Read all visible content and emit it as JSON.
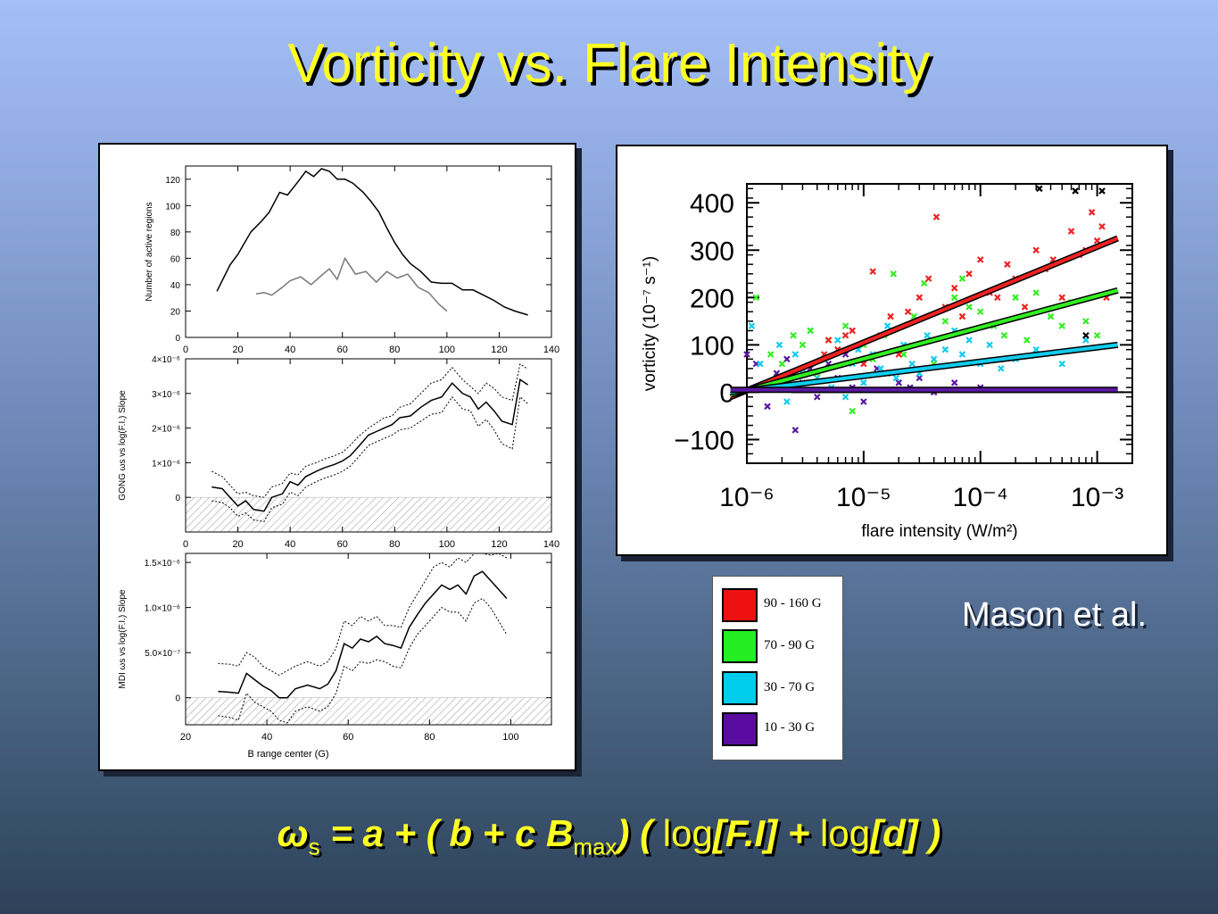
{
  "title": "Vorticity vs. Flare Intensity",
  "credit": "Mason et al.",
  "formula": {
    "omega": "ω",
    "omega_sub": "s",
    "part1": "= a + ( b + c B",
    "b_sub": "max",
    "part2": ") (",
    "log1": "log",
    "arg1": "[F.I]",
    "plus": "+",
    "log2": "log",
    "arg2": "[d]",
    "close": ")"
  },
  "colors": {
    "red": "#ee2222",
    "green": "#22ee22",
    "cyan": "#11ccee",
    "purple": "#5522aa",
    "yellow": "#ffff22"
  },
  "legend": [
    {
      "label": "90 - 160 G",
      "color": "#ee1111"
    },
    {
      "label": "70 - 90 G",
      "color": "#22ee22"
    },
    {
      "label": "30 - 70 G",
      "color": "#00ccee"
    },
    {
      "label": "10 - 30 G",
      "color": "#5a0ca0"
    }
  ],
  "chart_data": [
    {
      "type": "line",
      "ylabel": "Number of active regions",
      "xlim": [
        0,
        140
      ],
      "ylim": [
        0,
        130
      ],
      "xticks": [
        "0",
        "20",
        "40",
        "60",
        "80",
        "100",
        "120",
        "140"
      ],
      "yticks": [
        "0",
        "20",
        "40",
        "60",
        "80",
        "100",
        "120"
      ],
      "series": [
        {
          "x": [
            12,
            17,
            20,
            25,
            29,
            32,
            36,
            39,
            43,
            46,
            49,
            52,
            55,
            58,
            61,
            64,
            68,
            71,
            74,
            77,
            80,
            83,
            86,
            90,
            94,
            98,
            102,
            106,
            110,
            114,
            118,
            122,
            126,
            131
          ],
          "y": [
            35,
            55,
            63,
            80,
            88,
            95,
            110,
            108,
            118,
            126,
            122,
            128,
            126,
            120,
            120,
            117,
            110,
            103,
            95,
            83,
            72,
            63,
            56,
            50,
            42,
            41,
            41,
            36,
            36,
            32,
            28,
            23,
            20,
            17
          ]
        },
        {
          "x": [
            27,
            30,
            33,
            37,
            40,
            44,
            48,
            52,
            55,
            58,
            61,
            65,
            69,
            73,
            77,
            81,
            85,
            89,
            93,
            97,
            100
          ],
          "y": [
            33,
            34,
            32,
            38,
            43,
            46,
            40,
            47,
            52,
            44,
            60,
            48,
            50,
            42,
            50,
            45,
            48,
            38,
            34,
            25,
            20
          ]
        }
      ]
    },
    {
      "type": "line",
      "ylabel": "GONG ωs vs log(F.I.) Slope",
      "xlim": [
        0,
        140
      ],
      "ylim": [
        -1e-06,
        4e-06
      ],
      "xticks": [
        "0",
        "20",
        "40",
        "60",
        "80",
        "100",
        "120",
        "140"
      ],
      "yticks": [
        "0",
        "1×10⁻⁶",
        "2×10⁻⁶",
        "3×10⁻⁶",
        "4×10⁻⁶"
      ],
      "series": [
        {
          "x": [
            10,
            14,
            17,
            20,
            23,
            26,
            30,
            33,
            37,
            40,
            43,
            46,
            50,
            53,
            57,
            60,
            63,
            66,
            70,
            73,
            76,
            79,
            82,
            86,
            90,
            94,
            98,
            102,
            106,
            109,
            112,
            115,
            118,
            121,
            125,
            128,
            131
          ],
          "y": [
            3e-07,
            2.5e-07,
            0.0,
            -2.5e-07,
            -1e-07,
            -3.5e-07,
            -4e-07,
            0.0,
            1e-07,
            4.5e-07,
            3.5e-07,
            6e-07,
            7.5e-07,
            8.5e-07,
            9.5e-07,
            1.05e-06,
            1.2e-06,
            1.45e-06,
            1.8e-06,
            1.9e-06,
            2e-06,
            2.1e-06,
            2.3e-06,
            2.35e-06,
            2.6e-06,
            2.8e-06,
            2.9e-06,
            3.3e-06,
            3e-06,
            2.9e-06,
            2.55e-06,
            2.75e-06,
            2.5e-06,
            2.2e-06,
            2.1e-06,
            3.4e-06,
            3.25e-06
          ]
        },
        {
          "x": [
            10,
            14,
            17,
            20,
            23,
            26,
            30,
            33,
            37,
            40,
            43,
            46,
            50,
            53,
            57,
            60,
            63,
            66,
            70,
            73,
            76,
            79,
            82,
            86,
            90,
            94,
            98,
            102,
            106,
            109,
            112,
            115,
            118,
            121,
            125,
            128,
            131
          ],
          "y": [
            7.5e-07,
            6e-07,
            3.5e-07,
            1e-07,
            1.5e-07,
            5e-08,
            0.0,
            3e-07,
            4e-07,
            7e-07,
            6.5e-07,
            9e-07,
            1e-06,
            1.1e-06,
            1.2e-06,
            1.3e-06,
            1.5e-06,
            1.75e-06,
            2e-06,
            2.15e-06,
            2.3e-06,
            2.35e-06,
            2.6e-06,
            2.7e-06,
            3e-06,
            3.3e-06,
            3.4e-06,
            3.75e-06,
            3.4e-06,
            3.2e-06,
            3e-06,
            3.3e-06,
            3.15e-06,
            2.9e-06,
            2.8e-06,
            3.85e-06,
            3.7e-06
          ]
        },
        {
          "x": [
            10,
            14,
            17,
            20,
            23,
            26,
            30,
            33,
            37,
            40,
            43,
            46,
            50,
            53,
            57,
            60,
            63,
            66,
            70,
            73,
            76,
            79,
            82,
            86,
            90,
            94,
            98,
            102,
            106,
            109,
            112,
            115,
            118,
            121,
            125,
            128,
            131
          ],
          "y": [
            -1e-07,
            -1.5e-07,
            -3e-07,
            -5.5e-07,
            -4.5e-07,
            -6.5e-07,
            -7e-07,
            -3e-07,
            -2e-07,
            1.5e-07,
            5e-08,
            3e-07,
            4.5e-07,
            5.5e-07,
            6.5e-07,
            7.5e-07,
            9e-07,
            1.15e-06,
            1.5e-06,
            1.6e-06,
            1.7e-06,
            1.8e-06,
            1.95e-06,
            2e-06,
            2.2e-06,
            2.4e-06,
            2.45e-06,
            2.9e-06,
            2.55e-06,
            2.5e-06,
            2.05e-06,
            2.25e-06,
            1.95e-06,
            1.55e-06,
            1.4e-06,
            2.9e-06,
            2.7e-06
          ]
        }
      ]
    },
    {
      "type": "line",
      "ylabel": "MDI ωs vs log(F.I.) Slope",
      "xlim": [
        20,
        110
      ],
      "ylim": [
        -3e-07,
        1.6e-06
      ],
      "xticks": [
        "20",
        "40",
        "60",
        "80",
        "100"
      ],
      "yticks": [
        "0",
        "5.0×10⁻⁷",
        "1.0×10⁻⁶",
        "1.5×10⁻⁶"
      ],
      "xlabel": "B range center (G)",
      "series": [
        {
          "x": [
            28,
            31,
            33,
            35,
            37,
            39,
            41,
            43,
            45,
            47,
            50,
            53,
            55,
            57,
            59,
            61,
            63,
            65,
            67,
            69,
            71,
            73,
            75,
            77,
            79,
            81,
            83,
            85,
            87,
            89,
            91,
            93,
            95,
            97,
            99
          ],
          "y": [
            7e-08,
            6e-08,
            5e-08,
            2.7e-07,
            2e-07,
            1.3e-07,
            8e-08,
            0.0,
            0.0,
            1e-07,
            1.4e-07,
            1e-07,
            1.5e-07,
            3e-07,
            6e-07,
            5.5e-07,
            6.5e-07,
            6.2e-07,
            6.8e-07,
            6e-07,
            5.8e-07,
            5.5e-07,
            7.8e-07,
            9.2e-07,
            1.05e-06,
            1.15e-06,
            1.25e-06,
            1.2e-06,
            1.25e-06,
            1.15e-06,
            1.35e-06,
            1.4e-06,
            1.3e-06,
            1.2e-06,
            1.1e-06
          ]
        },
        {
          "x": [
            28,
            31,
            33,
            35,
            37,
            39,
            41,
            43,
            45,
            47,
            50,
            53,
            55,
            57,
            59,
            61,
            63,
            65,
            67,
            69,
            71,
            73,
            75,
            77,
            79,
            81,
            83,
            85,
            87,
            89,
            91,
            93,
            95,
            97,
            99
          ],
          "y": [
            3.8e-07,
            3.7e-07,
            3.5e-07,
            5e-07,
            4.5e-07,
            3.5e-07,
            3e-07,
            2.5e-07,
            3e-07,
            3.5e-07,
            4e-07,
            3.5e-07,
            4e-07,
            5.5e-07,
            8.5e-07,
            8e-07,
            9e-07,
            8.5e-07,
            9e-07,
            8e-07,
            8e-07,
            7.8e-07,
            1e-06,
            1.15e-06,
            1.3e-06,
            1.45e-06,
            1.5e-06,
            1.45e-06,
            1.55e-06,
            1.5e-06,
            1.6e-06,
            1.62e-06,
            1.58e-06,
            1.6e-06,
            1.55e-06
          ]
        },
        {
          "x": [
            28,
            31,
            33,
            35,
            37,
            39,
            41,
            43,
            45,
            47,
            50,
            53,
            55,
            57,
            59,
            61,
            63,
            65,
            67,
            69,
            71,
            73,
            75,
            77,
            79,
            81,
            83,
            85,
            87,
            89,
            91,
            93,
            95,
            97,
            99
          ],
          "y": [
            -2e-07,
            -2.2e-07,
            -2.5e-07,
            5e-08,
            -5e-08,
            -1e-07,
            -1.5e-07,
            -2.5e-07,
            -2.8e-07,
            -1.5e-07,
            -1e-07,
            -1.5e-07,
            -1e-07,
            5e-08,
            3.5e-07,
            3e-07,
            4e-07,
            3.8e-07,
            4.2e-07,
            4e-07,
            3.5e-07,
            3.3e-07,
            5.5e-07,
            7e-07,
            8e-07,
            9e-07,
            1e-06,
            9.5e-07,
            9.5e-07,
            8.5e-07,
            1.05e-06,
            1.1e-06,
            1e-06,
            8.5e-07,
            7e-07
          ]
        }
      ]
    },
    {
      "type": "scatter",
      "xlabel": "flare intensity (W/m²)",
      "ylabel": "vorticity (10⁻⁷ s⁻¹)",
      "xscale": "log",
      "xlim": [
        1e-06,
        0.002
      ],
      "ylim": [
        -150,
        440
      ],
      "xticks": [
        "10⁻⁶",
        "10⁻⁵",
        "10⁻⁴",
        "10⁻³"
      ],
      "yticks": [
        "−100",
        "0",
        "100",
        "200",
        "300",
        "400"
      ],
      "fits": [
        {
          "color": "red",
          "x": [
            1e-06,
            0.0015
          ],
          "y": [
            -10,
            325
          ]
        },
        {
          "color": "green",
          "x": [
            1e-06,
            0.0015
          ],
          "y": [
            -5,
            215
          ]
        },
        {
          "color": "cyan",
          "x": [
            1e-06,
            0.0015
          ],
          "y": [
            0,
            100
          ]
        },
        {
          "color": "purple",
          "x": [
            1e-06,
            0.0015
          ],
          "y": [
            5,
            5
          ]
        }
      ],
      "points": {
        "red": {
          "x": [
            4.6e-06,
            5e-06,
            6e-06,
            7e-06,
            8e-06,
            1e-05,
            1.2e-05,
            1.4e-05,
            1.7e-05,
            2e-05,
            2.4e-05,
            3e-05,
            3.6e-05,
            4.2e-05,
            5e-05,
            6e-05,
            7e-05,
            8e-05,
            0.0001,
            0.00012,
            0.00014,
            0.00017,
            0.0002,
            0.00024,
            0.0003,
            0.00036,
            0.00042,
            0.0005,
            0.0006,
            0.0007,
            0.0008,
            0.0009,
            0.001,
            0.0011,
            0.0012
          ],
          "y": [
            80,
            110,
            90,
            120,
            130,
            60,
            255,
            120,
            160,
            80,
            170,
            200,
            240,
            370,
            180,
            220,
            160,
            250,
            280,
            210,
            200,
            270,
            240,
            180,
            300,
            260,
            280,
            200,
            340,
            290,
            300,
            380,
            320,
            350,
            200
          ]
        },
        "green": {
          "x": [
            1.2e-06,
            1.6e-06,
            2e-06,
            2.5e-06,
            3e-06,
            3.5e-06,
            4e-06,
            5e-06,
            6e-06,
            7e-06,
            8e-06,
            1e-05,
            1.2e-05,
            1.5e-05,
            1.8e-05,
            2.2e-05,
            2.7e-05,
            3.3e-05,
            4e-05,
            5e-05,
            6e-05,
            7e-05,
            8e-05,
            0.0001,
            0.00013,
            0.00016,
            0.0002,
            0.00025,
            0.0003,
            0.0004,
            0.0005,
            0.0006,
            0.0008,
            0.001
          ],
          "y": [
            200,
            80,
            60,
            120,
            100,
            130,
            40,
            110,
            90,
            140,
            -40,
            100,
            70,
            120,
            250,
            80,
            160,
            230,
            60,
            150,
            200,
            240,
            180,
            170,
            140,
            120,
            200,
            110,
            210,
            160,
            140,
            190,
            150,
            120
          ]
        },
        "cyan": {
          "x": [
            1.1e-06,
            1.3e-06,
            1.6e-06,
            1.9e-06,
            2.2e-06,
            2.6e-06,
            3e-06,
            3.5e-06,
            4e-06,
            4.6e-06,
            5.3e-06,
            6e-06,
            7e-06,
            8e-06,
            9e-06,
            1e-05,
            1.2e-05,
            1.4e-05,
            1.6e-05,
            1.9e-05,
            2.2e-05,
            2.6e-05,
            3e-05,
            3.5e-05,
            4e-05,
            5e-05,
            6e-05,
            7e-05,
            8e-05,
            0.0001,
            0.00012,
            0.00015,
            0.0002,
            0.0003,
            0.0005,
            0.0008
          ],
          "y": [
            140,
            60,
            20,
            100,
            -20,
            80,
            40,
            130,
            30,
            70,
            10,
            110,
            -10,
            60,
            90,
            20,
            80,
            50,
            140,
            30,
            100,
            60,
            40,
            120,
            70,
            90,
            130,
            80,
            110,
            60,
            100,
            50,
            70,
            90,
            60,
            110
          ]
        },
        "purple": {
          "x": [
            1e-06,
            1.2e-06,
            1.5e-06,
            1.8e-06,
            2.2e-06,
            2.6e-06,
            3e-06,
            3.5e-06,
            4e-06,
            5e-06,
            6e-06,
            7e-06,
            8e-06,
            1e-05,
            1.3e-05,
            1.6e-05,
            2e-05,
            2.5e-05,
            3e-05,
            4e-05,
            6e-05,
            0.0001
          ],
          "y": [
            80,
            60,
            -30,
            40,
            70,
            -80,
            20,
            50,
            -10,
            60,
            30,
            80,
            10,
            -20,
            50,
            40,
            20,
            10,
            30,
            0,
            20,
            10
          ]
        },
        "black": {
          "x": [
            0.00032,
            0.00065,
            0.0011,
            0.0008
          ],
          "y": [
            430,
            425,
            425,
            120
          ]
        }
      }
    }
  ]
}
